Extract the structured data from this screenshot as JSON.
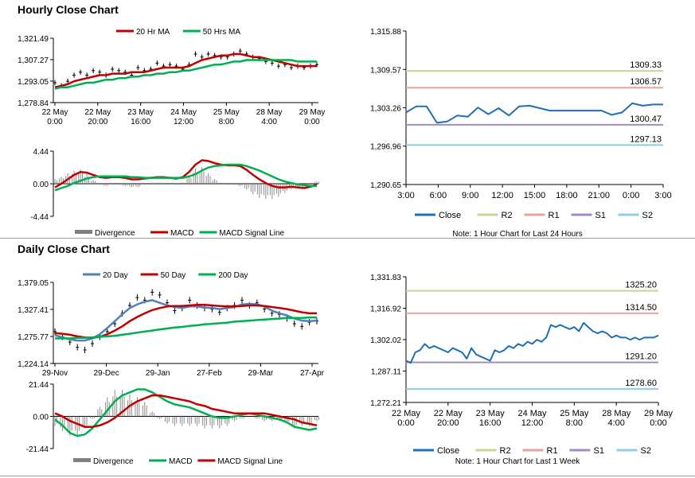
{
  "hourly": {
    "title": "Hourly Close Chart",
    "price_legend": [
      {
        "name": "20 Hr MA",
        "color": "#c00000"
      },
      {
        "name": "50 Hrs MA",
        "color": "#00b050"
      }
    ],
    "macd_legend": [
      {
        "name": "Divergence",
        "color": "#808080"
      },
      {
        "name": "MACD",
        "color": "#c00000"
      },
      {
        "name": "MACD Signal Line",
        "color": "#00b050"
      }
    ],
    "detail": {
      "note": "Note: 1 Hour Chart for Last 24 Hours",
      "legend": [
        {
          "name": "Close",
          "color": "#1f6fb5"
        },
        {
          "name": "R2",
          "color": "#c4d79b"
        },
        {
          "name": "R1",
          "color": "#e6a3a3"
        },
        {
          "name": "S1",
          "color": "#a08cc0"
        },
        {
          "name": "S2",
          "color": "#92cddc"
        }
      ]
    }
  },
  "daily": {
    "title": "Daily Close Chart",
    "price_legend": [
      {
        "name": "20 Day",
        "color": "#4f81bd"
      },
      {
        "name": "50 Day",
        "color": "#c00000"
      },
      {
        "name": "200 Day",
        "color": "#00b050"
      }
    ],
    "macd_legend": [
      {
        "name": "Divergence",
        "color": "#808080"
      },
      {
        "name": "MACD",
        "color": "#00b050"
      },
      {
        "name": "MACD Signal Line",
        "color": "#c00000"
      }
    ],
    "detail": {
      "note": "Note: 1 Hour Chart for Last 1 Week",
      "legend": [
        {
          "name": "Close",
          "color": "#1f6fb5"
        },
        {
          "name": "R2",
          "color": "#c4d79b"
        },
        {
          "name": "R1",
          "color": "#e6a3a3"
        },
        {
          "name": "S1",
          "color": "#a08cc0"
        },
        {
          "name": "S2",
          "color": "#92cddc"
        }
      ]
    }
  },
  "chart_data": [
    {
      "id": "hourly-price",
      "type": "line",
      "ylim": [
        1278.84,
        1321.49
      ],
      "y_ticks": [
        "1,321.49",
        "1,307.27",
        "1,293.05",
        "1,278.84"
      ],
      "x_ticks": [
        "22 May\n0:00",
        "22 May\n20:00",
        "23 May\n16:00",
        "24 May\n12:00",
        "25 May\n8:00",
        "28 May\n4:00",
        "29 May\n0:00"
      ],
      "series": [
        {
          "name": "Close",
          "values": [
            1292,
            1290,
            1293,
            1297,
            1299,
            1297,
            1300,
            1299,
            1297,
            1301,
            1300,
            1299,
            1297,
            1302,
            1300,
            1301,
            1305,
            1303,
            1304,
            1303,
            1301,
            1304,
            1311,
            1309,
            1311,
            1310,
            1309,
            1309,
            1311,
            1313,
            1311,
            1309,
            1308,
            1306,
            1305,
            1303,
            1304,
            1302,
            1303,
            1302,
            1303,
            1304
          ]
        },
        {
          "name": "20 Hr MA",
          "values": [
            1289,
            1290,
            1291,
            1293,
            1294,
            1295,
            1296,
            1297,
            1297,
            1298,
            1298,
            1298,
            1299,
            1299,
            1299,
            1300,
            1301,
            1302,
            1302,
            1302,
            1302,
            1303,
            1305,
            1307,
            1308,
            1309,
            1310,
            1310,
            1311,
            1311,
            1310,
            1309,
            1309,
            1308,
            1307,
            1306,
            1305,
            1304,
            1303,
            1303,
            1303,
            1303
          ]
        },
        {
          "name": "50 Hrs MA",
          "values": [
            1288,
            1289,
            1289,
            1290,
            1291,
            1292,
            1292,
            1293,
            1294,
            1294,
            1295,
            1295,
            1296,
            1296,
            1297,
            1297,
            1298,
            1298,
            1299,
            1299,
            1300,
            1300,
            1301,
            1302,
            1303,
            1304,
            1304,
            1305,
            1306,
            1306,
            1307,
            1307,
            1307,
            1307,
            1307,
            1307,
            1307,
            1307,
            1306,
            1306,
            1306,
            1306
          ]
        }
      ]
    },
    {
      "id": "hourly-macd",
      "type": "line",
      "ylim": [
        -4.44,
        4.44
      ],
      "y_ticks": [
        "4.44",
        "0.00",
        "-4.44"
      ],
      "series": [
        {
          "name": "MACD",
          "values": [
            -0.5,
            0.0,
            0.6,
            1.2,
            1.6,
            1.5,
            1.2,
            0.9,
            0.8,
            0.9,
            0.9,
            0.8,
            0.6,
            0.6,
            0.7,
            0.8,
            0.9,
            0.9,
            0.8,
            0.7,
            0.9,
            1.6,
            2.6,
            3.2,
            3.1,
            2.8,
            2.6,
            2.5,
            2.5,
            2.4,
            1.9,
            1.2,
            0.6,
            0.1,
            -0.3,
            -0.5,
            -0.5,
            -0.4,
            -0.5,
            -0.6,
            -0.4,
            -0.1
          ]
        },
        {
          "name": "MACD Signal Line",
          "values": [
            -0.9,
            -0.6,
            -0.3,
            0.1,
            0.4,
            0.7,
            0.9,
            1.0,
            1.0,
            1.0,
            1.0,
            1.0,
            0.9,
            0.9,
            0.8,
            0.8,
            0.8,
            0.8,
            0.8,
            0.8,
            0.8,
            1.0,
            1.3,
            1.8,
            2.2,
            2.4,
            2.5,
            2.6,
            2.6,
            2.6,
            2.4,
            2.1,
            1.8,
            1.4,
            1.0,
            0.6,
            0.3,
            0.1,
            -0.1,
            -0.2,
            -0.3,
            -0.3
          ]
        }
      ]
    },
    {
      "id": "hourly-detail",
      "type": "line",
      "ylim": [
        1290.65,
        1315.88
      ],
      "y_ticks": [
        "1,315.88",
        "1,309.57",
        "1,303.26",
        "1,296.96",
        "1,290.65"
      ],
      "x_ticks": [
        "3:00",
        "6:00",
        "9:00",
        "12:00",
        "15:00",
        "18:00",
        "21:00",
        "0:00",
        "3:00"
      ],
      "levels": [
        {
          "name": "R2",
          "value": 1309.33,
          "label": "1309.33"
        },
        {
          "name": "R1",
          "value": 1306.57,
          "label": "1306.57"
        },
        {
          "name": "S1",
          "value": 1300.47,
          "label": "1300.47"
        },
        {
          "name": "S2",
          "value": 1297.13,
          "label": "1297.13"
        }
      ],
      "series": [
        {
          "name": "Close",
          "values": [
            1302.5,
            1303.5,
            1303.5,
            1300.8,
            1301.0,
            1302.0,
            1301.8,
            1303.3,
            1302.2,
            1303.2,
            1302.0,
            1303.5,
            1303.6,
            1303.2,
            1302.8,
            1302.8,
            1302.8,
            1302.8,
            1302.8,
            1302.8,
            1302.1,
            1302.5,
            1304.0,
            1303.6,
            1303.8,
            1303.8
          ]
        }
      ]
    },
    {
      "id": "daily-price",
      "type": "line",
      "ylim": [
        1224.14,
        1379.05
      ],
      "y_ticks": [
        "1,379.05",
        "1,327.41",
        "1,275.77",
        "1,224.14"
      ],
      "x_ticks": [
        "29-Nov",
        "29-Dec",
        "29-Jan",
        "27-Feb",
        "29-Mar",
        "27-Apr"
      ],
      "series": [
        {
          "name": "Close",
          "values": [
            1285,
            1275,
            1265,
            1255,
            1250,
            1262,
            1275,
            1285,
            1300,
            1320,
            1335,
            1350,
            1345,
            1360,
            1355,
            1340,
            1325,
            1330,
            1345,
            1335,
            1330,
            1328,
            1322,
            1330,
            1335,
            1345,
            1335,
            1340,
            1328,
            1320,
            1318,
            1310,
            1300,
            1295,
            1303,
            1305
          ]
        },
        {
          "name": "20 Day",
          "values": [
            1278,
            1274,
            1270,
            1268,
            1268,
            1272,
            1280,
            1292,
            1305,
            1318,
            1330,
            1337,
            1342,
            1345,
            1340,
            1335,
            1332,
            1330,
            1333,
            1333,
            1331,
            1330,
            1328,
            1330,
            1332,
            1337,
            1338,
            1337,
            1333,
            1325,
            1320,
            1316,
            1310,
            1306,
            1305,
            1306
          ]
        },
        {
          "name": "50 Day",
          "values": [
            1282,
            1281,
            1279,
            1276,
            1274,
            1273,
            1275,
            1280,
            1287,
            1295,
            1305,
            1313,
            1320,
            1326,
            1330,
            1333,
            1334,
            1334,
            1335,
            1336,
            1336,
            1335,
            1334,
            1333,
            1333,
            1334,
            1335,
            1335,
            1334,
            1332,
            1330,
            1328,
            1325,
            1322,
            1320,
            1320
          ]
        },
        {
          "name": "200 Day",
          "values": [
            1272,
            1272,
            1272,
            1273,
            1273,
            1274,
            1275,
            1276,
            1277,
            1279,
            1281,
            1283,
            1285,
            1287,
            1289,
            1291,
            1293,
            1294,
            1296,
            1297,
            1299,
            1300,
            1301,
            1302,
            1304,
            1305,
            1306,
            1307,
            1308,
            1309,
            1310,
            1311,
            1311,
            1311,
            1312,
            1312
          ]
        }
      ]
    },
    {
      "id": "daily-macd",
      "type": "line",
      "ylim": [
        -21.44,
        21.44
      ],
      "y_ticks": [
        "21.44",
        "0.00",
        "-21.44"
      ],
      "series": [
        {
          "name": "MACD",
          "values": [
            -2,
            -6,
            -11,
            -13,
            -12,
            -8,
            -2,
            4,
            10,
            14,
            16,
            18,
            18,
            16,
            13,
            10,
            8,
            7,
            6,
            4,
            2,
            0,
            -1,
            -1,
            0,
            1,
            2,
            1,
            0,
            -1,
            -2,
            -4,
            -7,
            -8,
            -9,
            -8
          ]
        },
        {
          "name": "MACD Signal Line",
          "values": [
            2,
            0,
            -3,
            -5,
            -7,
            -7,
            -6,
            -4,
            -1,
            3,
            7,
            10,
            12,
            14,
            14,
            13,
            12,
            11,
            10,
            8,
            7,
            5,
            4,
            3,
            2,
            2,
            2,
            2,
            2,
            1,
            0,
            -1,
            -2,
            -4,
            -5,
            -6
          ]
        }
      ]
    },
    {
      "id": "daily-detail",
      "type": "line",
      "ylim": [
        1272.21,
        1331.83
      ],
      "y_ticks": [
        "1,331.83",
        "1,316.92",
        "1,302.02",
        "1,287.11",
        "1,272.21"
      ],
      "x_ticks": [
        "22 May\n0:00",
        "22 May\n20:00",
        "23 May\n16:00",
        "24 May\n12:00",
        "25 May\n8:00",
        "28 May\n4:00",
        "29 May\n0:00"
      ],
      "levels": [
        {
          "name": "R2",
          "value": 1325.2,
          "label": "1325.20"
        },
        {
          "name": "R1",
          "value": 1314.5,
          "label": "1314.50"
        },
        {
          "name": "S1",
          "value": 1291.2,
          "label": "1291.20"
        },
        {
          "name": "S2",
          "value": 1278.6,
          "label": "1278.60"
        }
      ],
      "series": [
        {
          "name": "Close",
          "values": [
            1292,
            1291,
            1296,
            1297,
            1300,
            1298,
            1299,
            1298,
            1297,
            1296,
            1298,
            1297,
            1296,
            1293,
            1298,
            1295,
            1294,
            1293,
            1292,
            1297,
            1296,
            1297,
            1299,
            1298,
            1300,
            1299,
            1301,
            1300,
            1302,
            1301,
            1303,
            1309,
            1308,
            1309,
            1308,
            1307,
            1308,
            1306,
            1310,
            1308,
            1306,
            1305,
            1306,
            1305,
            1303,
            1304,
            1303,
            1303,
            1302,
            1303,
            1302,
            1303,
            1303,
            1303,
            1304
          ]
        }
      ]
    }
  ]
}
